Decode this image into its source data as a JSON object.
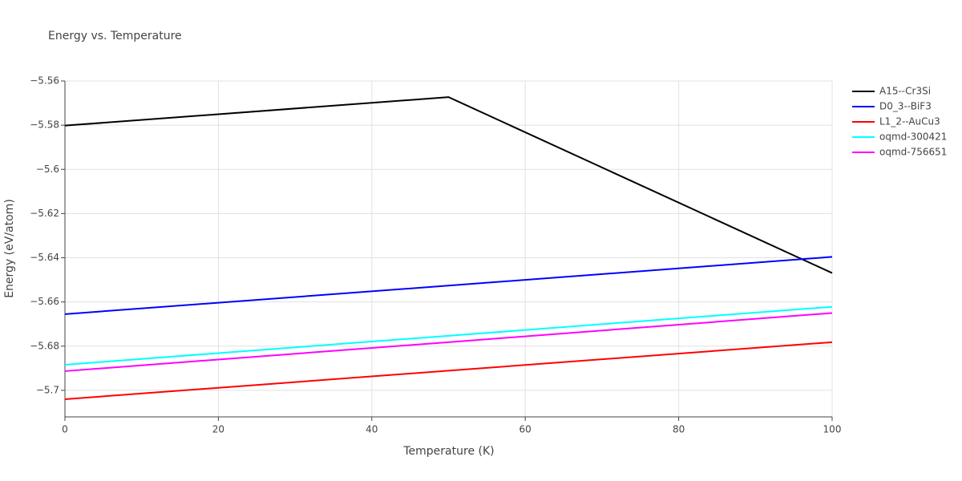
{
  "chart_data": {
    "type": "line",
    "title": "Energy vs. Temperature",
    "x_label": "Temperature (K)",
    "y_label": "Energy (eV/atom)",
    "x": [
      0,
      50,
      100
    ],
    "series": [
      {
        "name": "A15--Cr3Si",
        "color": "#000000",
        "values": [
          -5.5802,
          -5.5673,
          -5.6469
        ]
      },
      {
        "name": "D0_3--BiF3",
        "color": "#0000ff",
        "values": [
          -5.6655,
          -5.6526,
          -5.6396
        ]
      },
      {
        "name": "L1_2--AuCu3",
        "color": "#ff0000",
        "values": [
          -5.704,
          -5.6911,
          -5.6782
        ]
      },
      {
        "name": "oqmd-300421",
        "color": "#00ffff",
        "values": [
          -5.6884,
          -5.6753,
          -5.6622
        ]
      },
      {
        "name": "oqmd-756651",
        "color": "#ff00ff",
        "values": [
          -5.6913,
          -5.6782,
          -5.665
        ]
      }
    ],
    "xlim": [
      0,
      100
    ],
    "xticks": [
      0,
      20,
      40,
      60,
      80,
      100
    ],
    "ylim": [
      -5.712,
      -5.56
    ],
    "yticks": [
      {
        "value": -5.7,
        "label": "−5.7"
      },
      {
        "value": -5.68,
        "label": "−5.68"
      },
      {
        "value": -5.66,
        "label": "−5.66"
      },
      {
        "value": -5.64,
        "label": "−5.64"
      },
      {
        "value": -5.62,
        "label": "−5.62"
      },
      {
        "value": -5.6,
        "label": "−5.6"
      },
      {
        "value": -5.58,
        "label": "−5.58"
      },
      {
        "value": -5.56,
        "label": "−5.56"
      }
    ],
    "grid": true,
    "legend": "right"
  }
}
